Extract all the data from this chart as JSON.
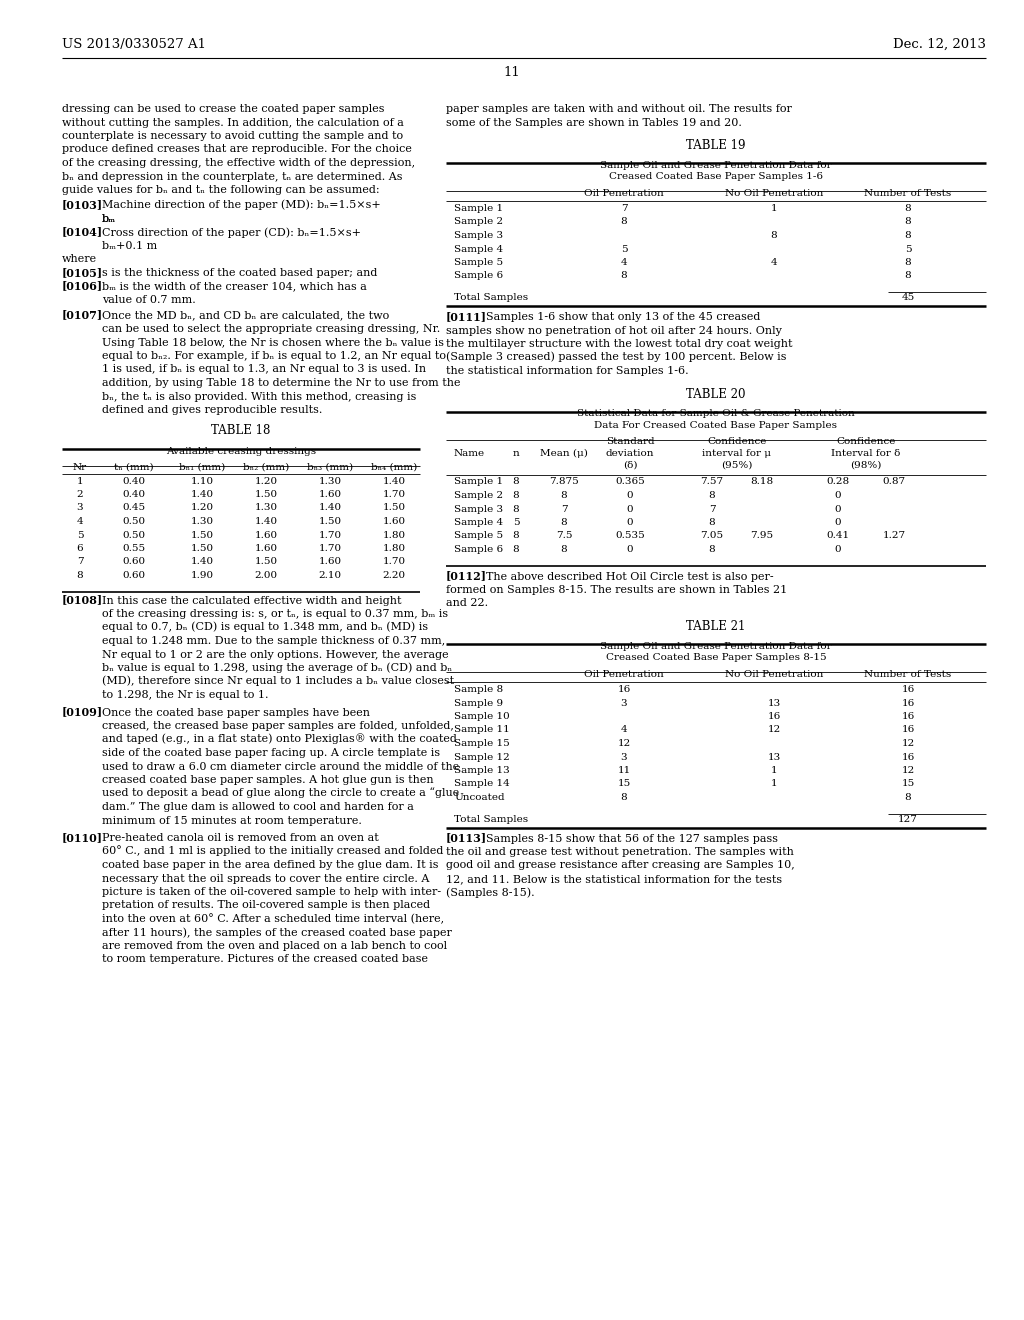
{
  "page_header_left": "US 2013/0330527 A1",
  "page_header_right": "Dec. 12, 2013",
  "page_number": "11",
  "table18_title": "TABLE 18",
  "table18_subtitle": "Available creasing dressings",
  "table18_data": [
    [
      "1",
      "0.40",
      "1.10",
      "1.20",
      "1.30",
      "1.40"
    ],
    [
      "2",
      "0.40",
      "1.40",
      "1.50",
      "1.60",
      "1.70"
    ],
    [
      "3",
      "0.45",
      "1.20",
      "1.30",
      "1.40",
      "1.50"
    ],
    [
      "4",
      "0.50",
      "1.30",
      "1.40",
      "1.50",
      "1.60"
    ],
    [
      "5",
      "0.50",
      "1.50",
      "1.60",
      "1.70",
      "1.80"
    ],
    [
      "6",
      "0.55",
      "1.50",
      "1.60",
      "1.70",
      "1.80"
    ],
    [
      "7",
      "0.60",
      "1.40",
      "1.50",
      "1.60",
      "1.70"
    ],
    [
      "8",
      "0.60",
      "1.90",
      "2.00",
      "2.10",
      "2.20"
    ]
  ],
  "table19_title": "TABLE 19",
  "table19_subtitle1": "Sample Oil and Grease Penetration Data for",
  "table19_subtitle2": "Creased Coated Base Paper Samples 1-6",
  "table19_data": [
    [
      "Sample 1",
      "7",
      "1",
      "8"
    ],
    [
      "Sample 2",
      "8",
      "",
      "8"
    ],
    [
      "Sample 3",
      "",
      "8",
      "8"
    ],
    [
      "Sample 4",
      "5",
      "",
      "5"
    ],
    [
      "Sample 5",
      "4",
      "4",
      "8"
    ],
    [
      "Sample 6",
      "8",
      "",
      "8"
    ]
  ],
  "table19_total_label": "Total Samples",
  "table19_total_value": "45",
  "table20_title": "TABLE 20",
  "table20_subtitle1": "Statistical Data for Sample Oil & Grease Penetration",
  "table20_subtitle2": "Data For Creased Coated Base Paper Samples",
  "table20_data": [
    [
      "Sample 1",
      "8",
      "7.875",
      "0.365",
      "7.57",
      "8.18",
      "0.28",
      "0.87"
    ],
    [
      "Sample 2",
      "8",
      "8",
      "0",
      "8",
      "",
      "0",
      ""
    ],
    [
      "Sample 3",
      "8",
      "7",
      "0",
      "7",
      "",
      "0",
      ""
    ],
    [
      "Sample 4",
      "5",
      "8",
      "0",
      "8",
      "",
      "0",
      ""
    ],
    [
      "Sample 5",
      "8",
      "7.5",
      "0.535",
      "7.05",
      "7.95",
      "0.41",
      "1.27"
    ],
    [
      "Sample 6",
      "8",
      "8",
      "0",
      "8",
      "",
      "0",
      ""
    ]
  ],
  "table21_title": "TABLE 21",
  "table21_subtitle1": "Sample Oil and Grease Penetration Data for",
  "table21_subtitle2": "Creased Coated Base Paper Samples 8-15",
  "table21_data": [
    [
      "Sample 8",
      "16",
      "",
      "16"
    ],
    [
      "Sample 9",
      "3",
      "13",
      "16"
    ],
    [
      "Sample 10",
      "",
      "16",
      "16"
    ],
    [
      "Sample 11",
      "4",
      "12",
      "16"
    ],
    [
      "Sample 15",
      "12",
      "",
      "12"
    ],
    [
      "Sample 12",
      "3",
      "13",
      "16"
    ],
    [
      "Sample 13",
      "11",
      "1",
      "12"
    ],
    [
      "Sample 14",
      "15",
      "1",
      "15"
    ],
    [
      "Uncoated",
      "8",
      "",
      "8"
    ]
  ],
  "table21_total_label": "Total Samples",
  "table21_total_value": "127",
  "bg_color": "#ffffff",
  "text_color": "#000000"
}
